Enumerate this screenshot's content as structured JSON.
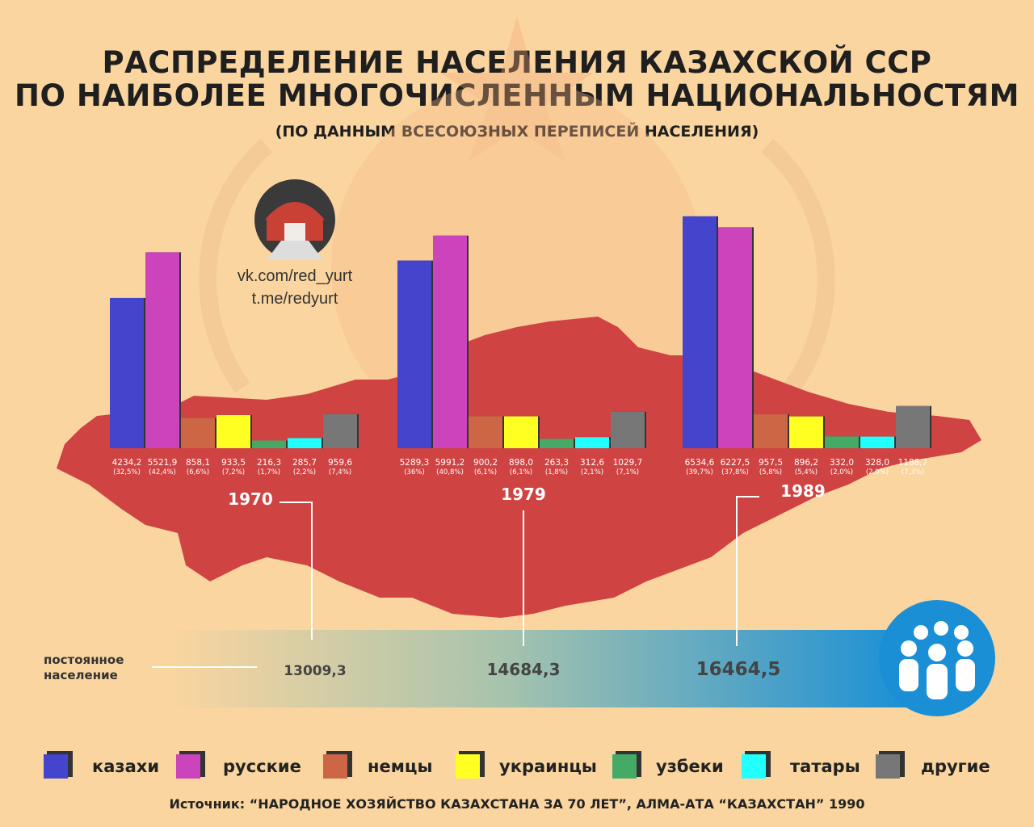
{
  "title_line1": "РАСПРЕДЕЛЕНИЕ НАСЕЛЕНИЯ КАЗАХСКОЙ ССР",
  "title_line2": "ПО НАИБОЛЕЕ МНОГОЧИСЛЕННЫМ НАЦИОНАЛЬНОСТЯМ",
  "subtitle": "(ПО ДАННЫМ ВСЕСОЮЗНЫХ ПЕРЕПИСЕЙ НАСЕЛЕНИЯ)",
  "links": {
    "vk": "vk.com/red_yurt",
    "tg": "t.me/redyurt"
  },
  "population_label_line1": "постоянное",
  "population_label_line2": "население",
  "source": "Источник: “НАРОДНОЕ ХОЗЯЙСТВО КАЗАХСТАНА ЗА 70 ЛЕТ”, АЛМА-АТА “КАЗАХСТАН” 1990",
  "colors": {
    "background": "#fad59f",
    "map": "#cf4343",
    "kazakhs": "#4444cc",
    "russians": "#cc44bb",
    "germans": "#cc6644",
    "ukrainians": "#ffff22",
    "uzbeks": "#44aa66",
    "tatars": "#22ffff",
    "others": "#777777",
    "population_bar_end": "#1188dd"
  },
  "chart_data": {
    "type": "bar",
    "categories": [
      "казахи",
      "русские",
      "немцы",
      "украинцы",
      "узбеки",
      "татары",
      "другие"
    ],
    "series": [
      {
        "name": "1970",
        "values": [
          4234.2,
          5521.9,
          858.1,
          933.5,
          216.3,
          285.7,
          959.6
        ],
        "labels": [
          "4234,2",
          "5521,9",
          "858,1",
          "933,5",
          "216,3",
          "285,7",
          "959,6"
        ],
        "shares": [
          "(32,5%)",
          "(42,4%)",
          "(6,6%)",
          "(7,2%)",
          "(1,7%)",
          "(2,2%)",
          "(7,4%)"
        ],
        "total": "13009,3"
      },
      {
        "name": "1979",
        "values": [
          5289.3,
          5991.2,
          900.2,
          898.0,
          263.3,
          312.6,
          1029.7
        ],
        "labels": [
          "5289,3",
          "5991,2",
          "900,2",
          "898,0",
          "263,3",
          "312,6",
          "1029,7"
        ],
        "shares": [
          "(36%)",
          "(40,8%)",
          "(6,1%)",
          "(6,1%)",
          "(1,8%)",
          "(2,1%)",
          "(7,1%)"
        ],
        "total": "14684,3"
      },
      {
        "name": "1989",
        "values": [
          6534.6,
          6227.5,
          957.5,
          896.2,
          332.0,
          328.0,
          1188.7
        ],
        "labels": [
          "6534,6",
          "6227,5",
          "957,5",
          "896,2",
          "332,0",
          "328,0",
          "1188,7"
        ],
        "shares": [
          "(39,7%)",
          "(37,8%)",
          "(5,8%)",
          "(5,4%)",
          "(2,0%)",
          "(2,0%)",
          "(7,3%)"
        ],
        "total": "16464,5"
      }
    ],
    "legend_position": "bottom",
    "grid": false
  },
  "icons": [
    "yurt-logo-icon",
    "people-group-icon"
  ]
}
